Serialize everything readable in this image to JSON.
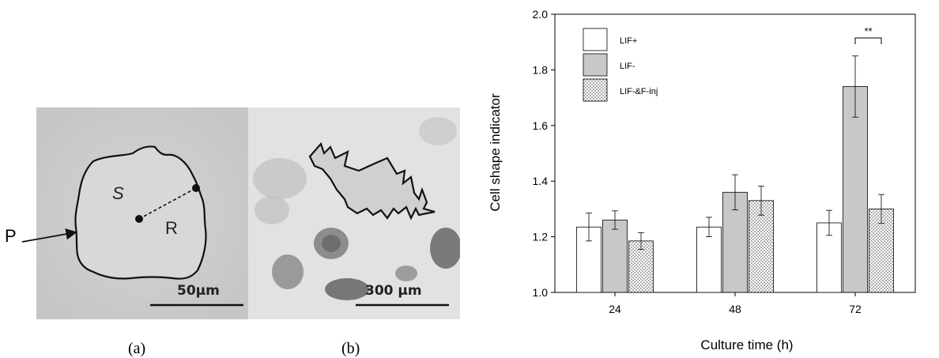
{
  "panel_a": {
    "caption": "(a)",
    "scale_label": "50μm",
    "label_s": "S",
    "label_r": "R",
    "label_p": "P"
  },
  "panel_b": {
    "caption": "(b)",
    "scale_label": "300 μm"
  },
  "chart_data": {
    "type": "bar",
    "title": "",
    "xlabel": "Culture time (h)",
    "ylabel": "Cell shape indicator",
    "ylim": [
      1.0,
      2.0
    ],
    "yticks": [
      "1.0",
      "1.2",
      "1.4",
      "1.6",
      "1.8",
      "2.0"
    ],
    "categories": [
      "24",
      "48",
      "72"
    ],
    "series": [
      {
        "name": "LIF+",
        "values": [
          1.235,
          1.235,
          1.25
        ],
        "errors": [
          0.05,
          0.035,
          0.045
        ],
        "fill": "#ffffff"
      },
      {
        "name": "LIF-",
        "values": [
          1.26,
          1.36,
          1.74
        ],
        "errors": [
          0.033,
          0.063,
          0.11
        ],
        "fill": "#c8c8c8"
      },
      {
        "name": "LIF-&F-inj",
        "values": [
          1.185,
          1.33,
          1.3
        ],
        "errors": [
          0.03,
          0.052,
          0.052
        ],
        "fill": "dots"
      }
    ],
    "legend_position": "top-left",
    "significance": {
      "label": "**",
      "category": "72",
      "between": [
        "LIF-",
        "LIF-&F-inj"
      ]
    }
  }
}
